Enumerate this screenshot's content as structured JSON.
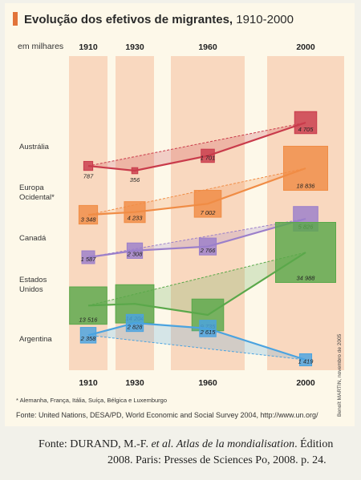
{
  "header": {
    "title": "Evolução dos efetivos de migrantes,",
    "title_years": " 1910-2000"
  },
  "unit_label": "em milhares",
  "footnote": "* Alemanha, França, Itália, Suíça, Bélgica e Luxemburgo",
  "source": "Fonte: United Nations, DESA/PD, World Economic and Social Survey 2004, http://www.un.org/",
  "credit": "Benoît MARTIN, novembro de 2005",
  "citation": {
    "line1_a": "Fonte: DURAND, M.-F. ",
    "line1_b": "et al. Atlas de la mondialisation",
    "line1_c": ". Édition",
    "line2": "2008. Paris: Presses de Sciences Po, 2008. p. 24."
  },
  "colors": {
    "band": "#f9d8bf",
    "Austrália": "#c93b4b",
    "Europa Ocidental*": "#f08c45",
    "Canadá": "#9b7fca",
    "Estados Unidos": "#5aa84a",
    "Argentina": "#4aa3e0"
  },
  "chart_data": {
    "type": "scatter",
    "title": "Evolução dos efetivos de migrantes, 1910-2000",
    "subtitle": "em milhares",
    "years": [
      "1910",
      "1930",
      "1960",
      "2000"
    ],
    "series": [
      {
        "name": "Austrália",
        "label_lines": [
          "Austrália"
        ],
        "values": [
          787,
          356,
          1701,
          4705
        ],
        "labels": [
          "787",
          "356",
          "1 701",
          "4 705"
        ]
      },
      {
        "name": "Europa Ocidental*",
        "label_lines": [
          "Europa",
          "Ocidental*"
        ],
        "values": [
          3348,
          4233,
          7002,
          18836
        ],
        "labels": [
          "3 348",
          "4 233",
          "7 002",
          "18 836"
        ]
      },
      {
        "name": "Canadá",
        "label_lines": [
          "Canadá"
        ],
        "values": [
          1587,
          2308,
          2766,
          5826
        ],
        "labels": [
          "1 587",
          "2 308",
          "2 766",
          "5 826"
        ]
      },
      {
        "name": "Estados Unidos",
        "label_lines": [
          "Estados",
          "Unidos"
        ],
        "values": [
          13516,
          14204,
          9735,
          34988
        ],
        "labels": [
          "13 516",
          "14 204",
          "9 735",
          "34 988"
        ]
      },
      {
        "name": "Argentina",
        "label_lines": [
          "Argentina"
        ],
        "values": [
          2358,
          2828,
          2615,
          1419
        ],
        "labels": [
          "2 358",
          "2 828",
          "2 615",
          "1 419"
        ]
      }
    ]
  }
}
